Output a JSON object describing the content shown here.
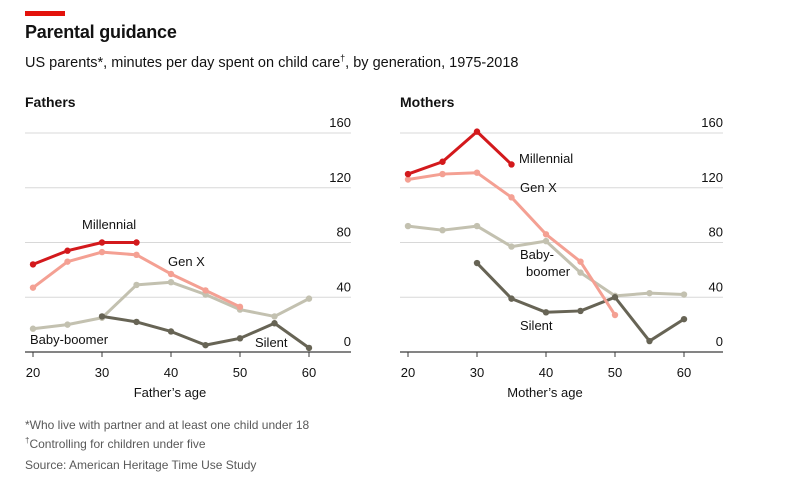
{
  "header": {
    "title": "Parental guidance",
    "subtitle_main": "US parents*, minutes per day spent on child care",
    "subtitle_mark": "†",
    "subtitle_end": ", by generation, 1975-2018",
    "accent_color": "#e3120b"
  },
  "footer": {
    "note1": "*Who live with partner and at least one child under 18",
    "note2_mark": "†",
    "note2": "Controlling for children under five",
    "source": "Source: American Heritage Time Use Study"
  },
  "chart_data": [
    {
      "type": "line",
      "title": "Fathers",
      "xlabel": "Father’s age",
      "ylabel": "",
      "x_ticks": [
        20,
        30,
        40,
        50,
        60
      ],
      "y_ticks": [
        0,
        40,
        80,
        120,
        160
      ],
      "xlim": [
        20,
        60
      ],
      "ylim": [
        0,
        160
      ],
      "grid": true,
      "series": [
        {
          "name": "Baby-boomer",
          "label": "Baby-boomer",
          "color": "#c3c1b0",
          "x": [
            20,
            25,
            30,
            35,
            40,
            45,
            50,
            55,
            60
          ],
          "values": [
            17,
            20,
            25,
            49,
            51,
            42,
            31,
            26,
            39
          ]
        },
        {
          "name": "Silent",
          "label": "Silent",
          "color": "#676455",
          "x": [
            30,
            35,
            40,
            45,
            50,
            55,
            60
          ],
          "values": [
            26,
            22,
            15,
            5,
            10,
            21,
            3
          ]
        },
        {
          "name": "Gen X",
          "label": "Gen X",
          "color": "#f4a093",
          "x": [
            20,
            25,
            30,
            35,
            40,
            45,
            50
          ],
          "values": [
            47,
            66,
            73,
            71,
            57,
            45,
            33
          ]
        },
        {
          "name": "Millennial",
          "label": "Millennial",
          "color": "#d3191c",
          "x": [
            20,
            25,
            30,
            35
          ],
          "values": [
            64,
            74,
            80,
            80
          ]
        }
      ]
    },
    {
      "type": "line",
      "title": "Mothers",
      "xlabel": "Mother’s age",
      "ylabel": "",
      "x_ticks": [
        20,
        30,
        40,
        50,
        60
      ],
      "y_ticks": [
        0,
        40,
        80,
        120,
        160
      ],
      "xlim": [
        20,
        60
      ],
      "ylim": [
        0,
        160
      ],
      "grid": true,
      "series": [
        {
          "name": "Baby-boomer",
          "label": "Baby-boomer",
          "color": "#c3c1b0",
          "x": [
            20,
            25,
            30,
            35,
            40,
            45,
            50,
            55,
            60
          ],
          "values": [
            92,
            89,
            92,
            77,
            81,
            58,
            41,
            43,
            42
          ]
        },
        {
          "name": "Silent",
          "label": "Silent",
          "color": "#676455",
          "x": [
            30,
            35,
            40,
            45,
            50,
            55,
            60
          ],
          "values": [
            65,
            39,
            29,
            30,
            40,
            8,
            24
          ]
        },
        {
          "name": "Gen X",
          "label": "Gen X",
          "color": "#f4a093",
          "x": [
            20,
            25,
            30,
            35,
            40,
            45,
            50
          ],
          "values": [
            126,
            130,
            131,
            113,
            86,
            66,
            27
          ]
        },
        {
          "name": "Millennial",
          "label": "Millennial",
          "color": "#d3191c",
          "x": [
            20,
            25,
            30,
            35
          ],
          "values": [
            130,
            139,
            161,
            137
          ]
        }
      ]
    }
  ]
}
